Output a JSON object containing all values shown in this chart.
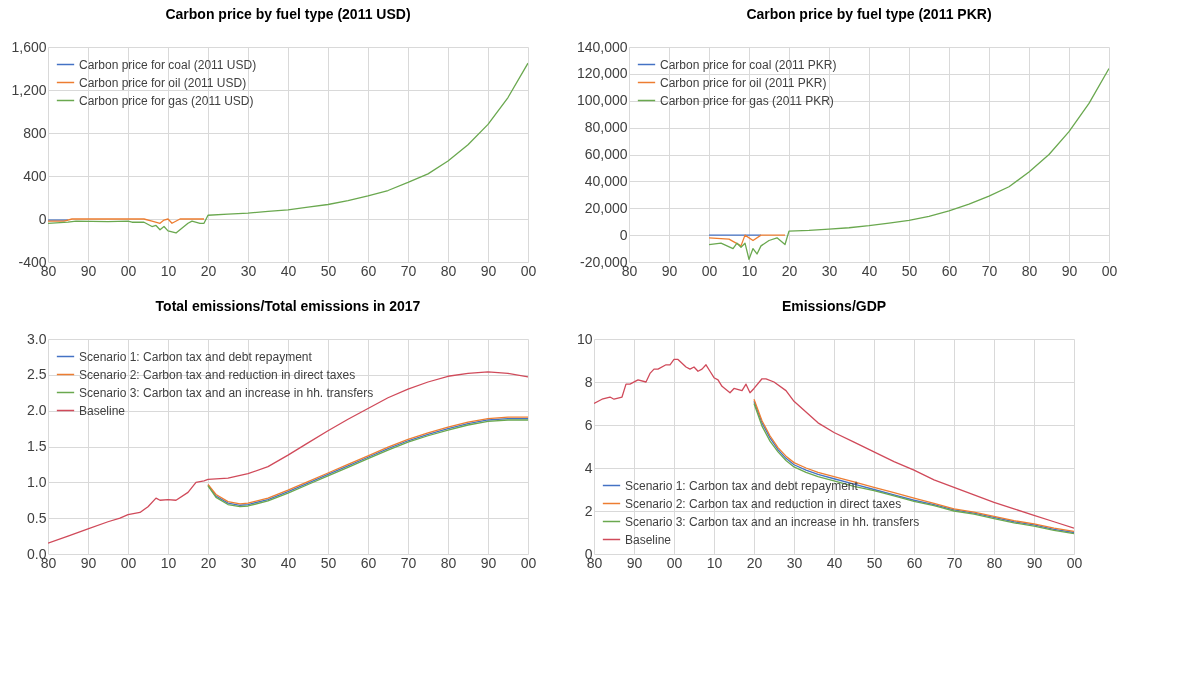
{
  "chart_data": [
    {
      "type": "line",
      "title": "Carbon price by fuel type (2011 USD)",
      "legend": "top left",
      "grid": true,
      "xlim": [
        1980,
        2100
      ],
      "xticks": [
        {
          "value": 1980,
          "label": "80"
        },
        {
          "value": 1990,
          "label": "90"
        },
        {
          "value": 2000,
          "label": "00"
        },
        {
          "value": 2010,
          "label": "10"
        },
        {
          "value": 2020,
          "label": "20"
        },
        {
          "value": 2030,
          "label": "30"
        },
        {
          "value": 2040,
          "label": "40"
        },
        {
          "value": 2050,
          "label": "50"
        },
        {
          "value": 2060,
          "label": "60"
        },
        {
          "value": 2070,
          "label": "70"
        },
        {
          "value": 2080,
          "label": "80"
        },
        {
          "value": 2090,
          "label": "90"
        },
        {
          "value": 2100,
          "label": "00"
        }
      ],
      "ylim": [
        -400,
        1600
      ],
      "yticks": [
        -400,
        0,
        400,
        800,
        {
          "value": 1200,
          "label": "1,200"
        },
        {
          "value": 1600,
          "label": "1,600"
        }
      ],
      "series": [
        {
          "name": "Carbon price for coal (2011 USD)",
          "color": "#4472c4",
          "x": [
            1980,
            1985
          ],
          "values": [
            -10,
            -10
          ]
        },
        {
          "name": "Carbon price for oil (2011 USD)",
          "color": "#ed7d31",
          "x": [
            1980,
            1984,
            1986,
            2000,
            2004,
            2006,
            2008,
            2009,
            2010,
            2011,
            2013,
            2019
          ],
          "values": [
            -20,
            -20,
            0,
            0,
            0,
            -20,
            -40,
            -10,
            0,
            -40,
            0,
            0
          ]
        },
        {
          "name": "Carbon price for gas (2011 USD)",
          "color": "#6aa84f",
          "x": [
            1980,
            1985,
            1987,
            1995,
            2000,
            2001,
            2004,
            2006,
            2007,
            2008,
            2009,
            2010,
            2012,
            2013,
            2015,
            2016,
            2018,
            2019,
            2020,
            2025,
            2030,
            2035,
            2040,
            2045,
            2050,
            2055,
            2060,
            2065,
            2070,
            2075,
            2080,
            2085,
            2090,
            2095,
            2100
          ],
          "values": [
            -40,
            -30,
            -20,
            -25,
            -20,
            -30,
            -30,
            -70,
            -60,
            -100,
            -70,
            -110,
            -130,
            -100,
            -40,
            -20,
            -40,
            -40,
            35,
            45,
            55,
            70,
            85,
            110,
            135,
            170,
            215,
            265,
            340,
            420,
            540,
            690,
            880,
            1130,
            1450
          ]
        }
      ]
    },
    {
      "type": "line",
      "title": "Carbon price by fuel type (2011 PKR)",
      "legend": "top left",
      "grid": true,
      "xlim": [
        1980,
        2100
      ],
      "xticks": [
        {
          "value": 1980,
          "label": "80"
        },
        {
          "value": 1990,
          "label": "90"
        },
        {
          "value": 2000,
          "label": "00"
        },
        {
          "value": 2010,
          "label": "10"
        },
        {
          "value": 2020,
          "label": "20"
        },
        {
          "value": 2030,
          "label": "30"
        },
        {
          "value": 2040,
          "label": "40"
        },
        {
          "value": 2050,
          "label": "50"
        },
        {
          "value": 2060,
          "label": "60"
        },
        {
          "value": 2070,
          "label": "70"
        },
        {
          "value": 2080,
          "label": "80"
        },
        {
          "value": 2090,
          "label": "90"
        },
        {
          "value": 2100,
          "label": "00"
        }
      ],
      "ylim": [
        -20000,
        140000
      ],
      "yticks": [
        {
          "value": -20000,
          "label": "-20,000"
        },
        0,
        {
          "value": 20000,
          "label": "20,000"
        },
        {
          "value": 40000,
          "label": "40,000"
        },
        {
          "value": 60000,
          "label": "60,000"
        },
        {
          "value": 80000,
          "label": "80,000"
        },
        {
          "value": 100000,
          "label": "100,000"
        },
        {
          "value": 120000,
          "label": "120,000"
        },
        {
          "value": 140000,
          "label": "140,000"
        }
      ],
      "series": [
        {
          "name": "Carbon price for coal (2011 PKR)",
          "color": "#4472c4",
          "x": [
            2000,
            2013
          ],
          "values": [
            0,
            0
          ]
        },
        {
          "name": "Carbon price for oil (2011 PKR)",
          "color": "#ed7d31",
          "x": [
            2000,
            2005,
            2008,
            2009,
            2011,
            2013,
            2019
          ],
          "values": [
            -2000,
            -3000,
            -8000,
            0,
            -4000,
            0,
            0
          ]
        },
        {
          "name": "Carbon price for gas (2011 PKR)",
          "color": "#6aa84f",
          "x": [
            2000,
            2003,
            2006,
            2007,
            2008,
            2009,
            2010,
            2011,
            2012,
            2013,
            2015,
            2017,
            2019,
            2020,
            2025,
            2030,
            2035,
            2040,
            2045,
            2050,
            2055,
            2060,
            2065,
            2070,
            2075,
            2080,
            2085,
            2090,
            2095,
            2100
          ],
          "values": [
            -7000,
            -6000,
            -10000,
            -6000,
            -9000,
            -6000,
            -18000,
            -10000,
            -14000,
            -8000,
            -4000,
            -2000,
            -7000,
            3000,
            3500,
            4500,
            5500,
            7000,
            9000,
            11000,
            14000,
            18000,
            23000,
            29000,
            36000,
            47000,
            60000,
            77000,
            98000,
            124000
          ]
        }
      ]
    },
    {
      "type": "line",
      "title": "Total emissions/Total emissions in 2017",
      "legend": "top left",
      "grid": true,
      "xlim": [
        1980,
        2100
      ],
      "xticks": [
        {
          "value": 1980,
          "label": "80"
        },
        {
          "value": 1990,
          "label": "90"
        },
        {
          "value": 2000,
          "label": "00"
        },
        {
          "value": 2010,
          "label": "10"
        },
        {
          "value": 2020,
          "label": "20"
        },
        {
          "value": 2030,
          "label": "30"
        },
        {
          "value": 2040,
          "label": "40"
        },
        {
          "value": 2050,
          "label": "50"
        },
        {
          "value": 2060,
          "label": "60"
        },
        {
          "value": 2070,
          "label": "70"
        },
        {
          "value": 2080,
          "label": "80"
        },
        {
          "value": 2090,
          "label": "90"
        },
        {
          "value": 2100,
          "label": "00"
        }
      ],
      "ylim": [
        0,
        3
      ],
      "yticks": [
        {
          "value": 0,
          "label": "0.0"
        },
        0.5,
        {
          "value": 1,
          "label": "1.0"
        },
        1.5,
        {
          "value": 2,
          "label": "2.0"
        },
        2.5,
        {
          "value": 3,
          "label": "3.0"
        }
      ],
      "series": [
        {
          "name": "Scenario 1: Carbon tax and debt repayment",
          "color": "#4472c4",
          "x": [
            2020,
            2022,
            2025,
            2028,
            2030,
            2035,
            2040,
            2045,
            2050,
            2055,
            2060,
            2065,
            2070,
            2075,
            2080,
            2085,
            2090,
            2095,
            2100
          ],
          "values": [
            0.96,
            0.81,
            0.71,
            0.68,
            0.69,
            0.76,
            0.87,
            0.99,
            1.11,
            1.23,
            1.35,
            1.47,
            1.58,
            1.67,
            1.75,
            1.82,
            1.87,
            1.89,
            1.89
          ]
        },
        {
          "name": "Scenario 2: Carbon tax and reduction in direct taxes",
          "color": "#ed7d31",
          "x": [
            2020,
            2022,
            2025,
            2028,
            2030,
            2035,
            2040,
            2045,
            2050,
            2055,
            2060,
            2065,
            2070,
            2075,
            2080,
            2085,
            2090,
            2095,
            2100
          ],
          "values": [
            0.97,
            0.83,
            0.73,
            0.7,
            0.71,
            0.78,
            0.89,
            1.01,
            1.13,
            1.25,
            1.37,
            1.49,
            1.6,
            1.69,
            1.77,
            1.84,
            1.89,
            1.91,
            1.91
          ]
        },
        {
          "name": "Scenario 3: Carbon tax and an increase in hh. transfers",
          "color": "#6aa84f",
          "x": [
            2020,
            2022,
            2025,
            2028,
            2030,
            2035,
            2040,
            2045,
            2050,
            2055,
            2060,
            2065,
            2070,
            2075,
            2080,
            2085,
            2090,
            2095,
            2100
          ],
          "values": [
            0.95,
            0.79,
            0.69,
            0.66,
            0.67,
            0.74,
            0.85,
            0.97,
            1.09,
            1.21,
            1.33,
            1.45,
            1.56,
            1.65,
            1.73,
            1.8,
            1.85,
            1.87,
            1.87
          ]
        },
        {
          "name": "Baseline",
          "color": "#d04a5a",
          "x": [
            1980,
            1985,
            1990,
            1995,
            1998,
            2000,
            2003,
            2005,
            2007,
            2008,
            2010,
            2012,
            2015,
            2017,
            2019,
            2020,
            2025,
            2030,
            2035,
            2040,
            2045,
            2050,
            2055,
            2060,
            2065,
            2070,
            2075,
            2080,
            2085,
            2090,
            2095,
            2100
          ],
          "values": [
            0.15,
            0.25,
            0.35,
            0.45,
            0.5,
            0.55,
            0.58,
            0.66,
            0.78,
            0.75,
            0.76,
            0.75,
            0.86,
            1.0,
            1.02,
            1.04,
            1.06,
            1.12,
            1.22,
            1.38,
            1.55,
            1.72,
            1.88,
            2.03,
            2.18,
            2.3,
            2.4,
            2.48,
            2.52,
            2.54,
            2.52,
            2.47
          ]
        }
      ]
    },
    {
      "type": "line",
      "title": "Emissions/GDP",
      "legend": "bottom left",
      "grid": true,
      "xlim": [
        1980,
        2100
      ],
      "xticks": [
        {
          "value": 1980,
          "label": "80"
        },
        {
          "value": 1990,
          "label": "90"
        },
        {
          "value": 2000,
          "label": "00"
        },
        {
          "value": 2010,
          "label": "10"
        },
        {
          "value": 2020,
          "label": "20"
        },
        {
          "value": 2030,
          "label": "30"
        },
        {
          "value": 2040,
          "label": "40"
        },
        {
          "value": 2050,
          "label": "50"
        },
        {
          "value": 2060,
          "label": "60"
        },
        {
          "value": 2070,
          "label": "70"
        },
        {
          "value": 2080,
          "label": "80"
        },
        {
          "value": 2090,
          "label": "90"
        },
        {
          "value": 2100,
          "label": "00"
        }
      ],
      "ylim": [
        0,
        10
      ],
      "yticks": [
        0,
        2,
        4,
        6,
        8,
        10
      ],
      "series": [
        {
          "name": "Scenario 1: Carbon tax and debt repayment",
          "color": "#4472c4",
          "x": [
            2020,
            2022,
            2024,
            2026,
            2028,
            2030,
            2033,
            2036,
            2040,
            2045,
            2050,
            2055,
            2060,
            2065,
            2070,
            2075,
            2080,
            2085,
            2090,
            2095,
            2100
          ],
          "values": [
            7.1,
            6.1,
            5.4,
            4.85,
            4.45,
            4.15,
            3.9,
            3.7,
            3.5,
            3.25,
            3.0,
            2.75,
            2.5,
            2.3,
            2.05,
            1.9,
            1.7,
            1.5,
            1.35,
            1.15,
            1.0
          ]
        },
        {
          "name": "Scenario 2: Carbon tax and reduction in direct taxes",
          "color": "#ed7d31",
          "x": [
            2020,
            2022,
            2024,
            2026,
            2028,
            2030,
            2033,
            2036,
            2040,
            2045,
            2050,
            2055,
            2060,
            2065,
            2070,
            2075,
            2080,
            2085,
            2090,
            2095,
            2100
          ],
          "values": [
            7.2,
            6.2,
            5.5,
            4.95,
            4.55,
            4.25,
            4.0,
            3.8,
            3.6,
            3.35,
            3.1,
            2.85,
            2.6,
            2.35,
            2.1,
            1.95,
            1.75,
            1.55,
            1.4,
            1.2,
            1.05
          ]
        },
        {
          "name": "Scenario 3: Carbon tax and an increase in hh. transfers",
          "color": "#6aa84f",
          "x": [
            2020,
            2022,
            2024,
            2026,
            2028,
            2030,
            2033,
            2036,
            2040,
            2045,
            2050,
            2055,
            2060,
            2065,
            2070,
            2075,
            2080,
            2085,
            2090,
            2095,
            2100
          ],
          "values": [
            7.0,
            5.95,
            5.25,
            4.75,
            4.35,
            4.05,
            3.8,
            3.6,
            3.4,
            3.15,
            2.95,
            2.7,
            2.45,
            2.25,
            2.0,
            1.85,
            1.65,
            1.45,
            1.3,
            1.1,
            0.95
          ]
        },
        {
          "name": "Baseline",
          "color": "#d04a5a",
          "x": [
            1980,
            1982,
            1984,
            1985,
            1987,
            1988,
            1989,
            1991,
            1993,
            1994,
            1995,
            1996,
            1998,
            1999,
            2000,
            2001,
            2003,
            2004,
            2005,
            2006,
            2007,
            2008,
            2009,
            2010,
            2011,
            2012,
            2014,
            2015,
            2017,
            2018,
            2019,
            2020,
            2022,
            2023,
            2025,
            2028,
            2030,
            2033,
            2036,
            2040,
            2045,
            2050,
            2055,
            2060,
            2065,
            2070,
            2075,
            2080,
            2085,
            2090,
            2095,
            2100
          ],
          "values": [
            7.0,
            7.2,
            7.3,
            7.2,
            7.3,
            7.9,
            7.9,
            8.1,
            8.0,
            8.4,
            8.6,
            8.6,
            8.8,
            8.8,
            9.05,
            9.05,
            8.7,
            8.6,
            8.7,
            8.5,
            8.6,
            8.8,
            8.5,
            8.2,
            8.1,
            7.8,
            7.5,
            7.7,
            7.6,
            7.9,
            7.5,
            7.7,
            8.15,
            8.15,
            8.0,
            7.6,
            7.1,
            6.6,
            6.1,
            5.65,
            5.2,
            4.75,
            4.3,
            3.9,
            3.45,
            3.1,
            2.75,
            2.4,
            2.1,
            1.8,
            1.5,
            1.2
          ]
        }
      ]
    }
  ]
}
